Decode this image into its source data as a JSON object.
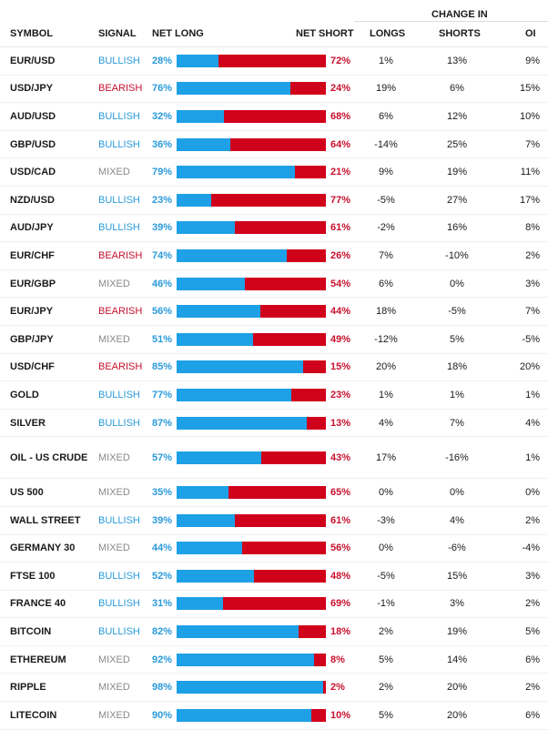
{
  "header": {
    "symbol": "SYMBOL",
    "signal": "SIGNAL",
    "net_long": "NET LONG",
    "net_short": "NET SHORT",
    "change_in": "CHANGE IN",
    "longs": "LONGS",
    "shorts": "SHORTS",
    "oi": "OI"
  },
  "colors": {
    "bullish": "#2a9ad9",
    "bearish": "#c8102e",
    "mixed": "#8a8a8a",
    "long_bar": "#1ea0e6",
    "short_bar": "#d0021b"
  },
  "rows": [
    {
      "symbol": "EUR/USD",
      "signal": "BULLISH",
      "net_long": "28%",
      "net_long_value": 28,
      "net_short": "72%",
      "longs": "1%",
      "shorts": "13%",
      "oi": "9%"
    },
    {
      "symbol": "USD/JPY",
      "signal": "BEARISH",
      "net_long": "76%",
      "net_long_value": 76,
      "net_short": "24%",
      "longs": "19%",
      "shorts": "6%",
      "oi": "15%"
    },
    {
      "symbol": "AUD/USD",
      "signal": "BULLISH",
      "net_long": "32%",
      "net_long_value": 32,
      "net_short": "68%",
      "longs": "6%",
      "shorts": "12%",
      "oi": "10%"
    },
    {
      "symbol": "GBP/USD",
      "signal": "BULLISH",
      "net_long": "36%",
      "net_long_value": 36,
      "net_short": "64%",
      "longs": "-14%",
      "shorts": "25%",
      "oi": "7%"
    },
    {
      "symbol": "USD/CAD",
      "signal": "MIXED",
      "net_long": "79%",
      "net_long_value": 79,
      "net_short": "21%",
      "longs": "9%",
      "shorts": "19%",
      "oi": "11%"
    },
    {
      "symbol": "NZD/USD",
      "signal": "BULLISH",
      "net_long": "23%",
      "net_long_value": 23,
      "net_short": "77%",
      "longs": "-5%",
      "shorts": "27%",
      "oi": "17%"
    },
    {
      "symbol": "AUD/JPY",
      "signal": "BULLISH",
      "net_long": "39%",
      "net_long_value": 39,
      "net_short": "61%",
      "longs": "-2%",
      "shorts": "16%",
      "oi": "8%"
    },
    {
      "symbol": "EUR/CHF",
      "signal": "BEARISH",
      "net_long": "74%",
      "net_long_value": 74,
      "net_short": "26%",
      "longs": "7%",
      "shorts": "-10%",
      "oi": "2%"
    },
    {
      "symbol": "EUR/GBP",
      "signal": "MIXED",
      "net_long": "46%",
      "net_long_value": 46,
      "net_short": "54%",
      "longs": "6%",
      "shorts": "0%",
      "oi": "3%"
    },
    {
      "symbol": "EUR/JPY",
      "signal": "BEARISH",
      "net_long": "56%",
      "net_long_value": 56,
      "net_short": "44%",
      "longs": "18%",
      "shorts": "-5%",
      "oi": "7%"
    },
    {
      "symbol": "GBP/JPY",
      "signal": "MIXED",
      "net_long": "51%",
      "net_long_value": 51,
      "net_short": "49%",
      "longs": "-12%",
      "shorts": "5%",
      "oi": "-5%"
    },
    {
      "symbol": "USD/CHF",
      "signal": "BEARISH",
      "net_long": "85%",
      "net_long_value": 85,
      "net_short": "15%",
      "longs": "20%",
      "shorts": "18%",
      "oi": "20%"
    },
    {
      "symbol": "GOLD",
      "signal": "BULLISH",
      "net_long": "77%",
      "net_long_value": 77,
      "net_short": "23%",
      "longs": "1%",
      "shorts": "1%",
      "oi": "1%"
    },
    {
      "symbol": "SILVER",
      "signal": "BULLISH",
      "net_long": "87%",
      "net_long_value": 87,
      "net_short": "13%",
      "longs": "4%",
      "shorts": "7%",
      "oi": "4%"
    },
    {
      "symbol": "OIL - US CRUDE",
      "signal": "MIXED",
      "net_long": "57%",
      "net_long_value": 57,
      "net_short": "43%",
      "longs": "17%",
      "shorts": "-16%",
      "oi": "1%",
      "tall": true
    },
    {
      "symbol": "US 500",
      "signal": "MIXED",
      "net_long": "35%",
      "net_long_value": 35,
      "net_short": "65%",
      "longs": "0%",
      "shorts": "0%",
      "oi": "0%"
    },
    {
      "symbol": "WALL STREET",
      "signal": "BULLISH",
      "net_long": "39%",
      "net_long_value": 39,
      "net_short": "61%",
      "longs": "-3%",
      "shorts": "4%",
      "oi": "2%"
    },
    {
      "symbol": "GERMANY 30",
      "signal": "MIXED",
      "net_long": "44%",
      "net_long_value": 44,
      "net_short": "56%",
      "longs": "0%",
      "shorts": "-6%",
      "oi": "-4%"
    },
    {
      "symbol": "FTSE 100",
      "signal": "BULLISH",
      "net_long": "52%",
      "net_long_value": 52,
      "net_short": "48%",
      "longs": "-5%",
      "shorts": "15%",
      "oi": "3%"
    },
    {
      "symbol": "FRANCE 40",
      "signal": "BULLISH",
      "net_long": "31%",
      "net_long_value": 31,
      "net_short": "69%",
      "longs": "-1%",
      "shorts": "3%",
      "oi": "2%"
    },
    {
      "symbol": "BITCOIN",
      "signal": "BULLISH",
      "net_long": "82%",
      "net_long_value": 82,
      "net_short": "18%",
      "longs": "2%",
      "shorts": "19%",
      "oi": "5%"
    },
    {
      "symbol": "ETHEREUM",
      "signal": "MIXED",
      "net_long": "92%",
      "net_long_value": 92,
      "net_short": "8%",
      "longs": "5%",
      "shorts": "14%",
      "oi": "6%"
    },
    {
      "symbol": "RIPPLE",
      "signal": "MIXED",
      "net_long": "98%",
      "net_long_value": 98,
      "net_short": "2%",
      "longs": "2%",
      "shorts": "20%",
      "oi": "2%"
    },
    {
      "symbol": "LITECOIN",
      "signal": "MIXED",
      "net_long": "90%",
      "net_long_value": 90,
      "net_short": "10%",
      "longs": "5%",
      "shorts": "20%",
      "oi": "6%"
    }
  ]
}
